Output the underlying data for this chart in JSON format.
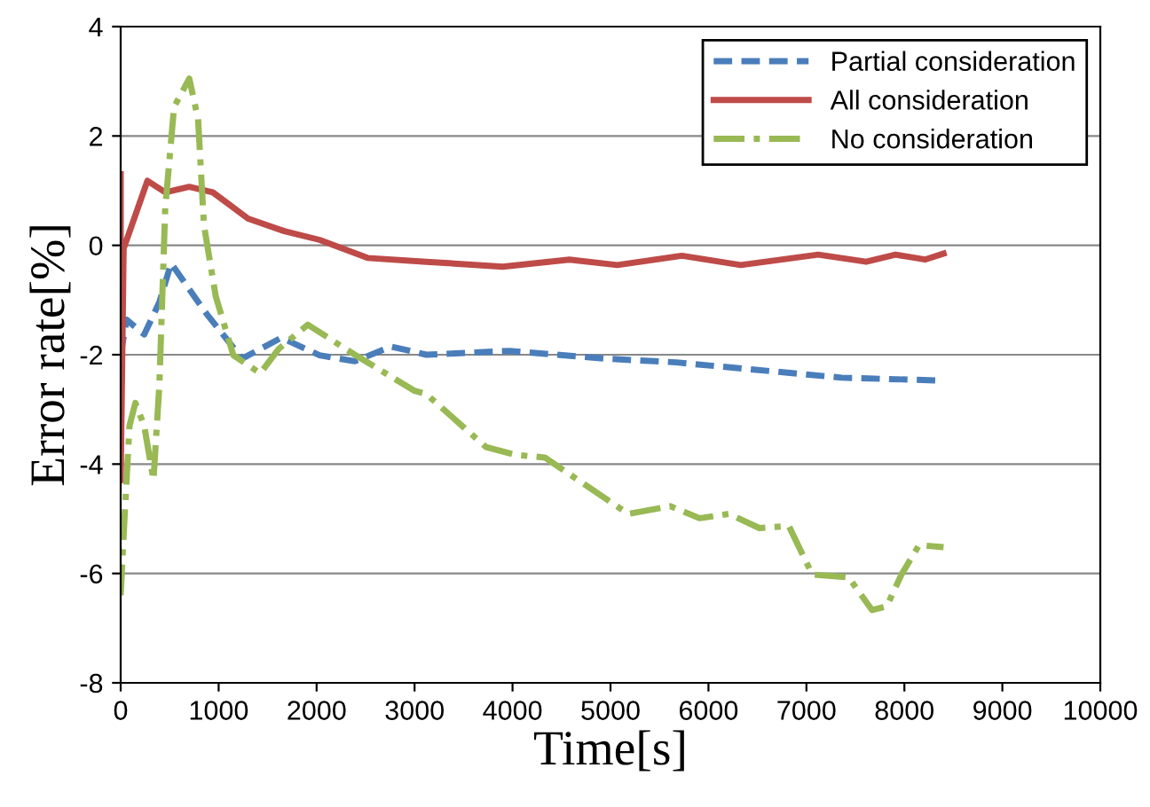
{
  "chart_data": {
    "type": "line",
    "xlabel": "Time[s]",
    "ylabel": "Error rate[%]",
    "xlim": [
      0,
      10000
    ],
    "xticks": [
      0,
      1000,
      2000,
      3000,
      4000,
      5000,
      6000,
      7000,
      8000,
      9000,
      10000
    ],
    "ylim": [
      -8,
      4
    ],
    "yticks": [
      -8,
      -6,
      -4,
      -2,
      0,
      2,
      4
    ],
    "grid": "y",
    "legend": "top right",
    "marker": "none",
    "series": [
      {
        "name": "Partial consideration",
        "color": "#4a7ebb",
        "line_style": "dashed",
        "x": [
          0,
          60,
          240,
          395,
          515,
          880,
          1240,
          1640,
          2030,
          2390,
          2760,
          3120,
          3970,
          4940,
          5670,
          6390,
          7360,
          8330
        ],
        "values": [
          -2.0,
          -1.36,
          -1.63,
          -1.04,
          -0.33,
          -1.26,
          -2.07,
          -1.69,
          -2.01,
          -2.12,
          -1.85,
          -2.0,
          -1.93,
          -2.07,
          -2.14,
          -2.26,
          -2.42,
          -2.47
        ]
      },
      {
        "name": "All consideration",
        "color": "#be4b48",
        "line_style": "solid",
        "x": [
          0,
          0,
          30,
          273,
          455,
          700,
          940,
          1300,
          1670,
          2030,
          2520,
          3120,
          3900,
          4580,
          5070,
          5730,
          6330,
          7120,
          7610,
          7910,
          8210,
          8400
        ],
        "values": [
          1.3,
          -4.3,
          -0.06,
          1.18,
          0.97,
          1.07,
          0.97,
          0.49,
          0.26,
          0.1,
          -0.23,
          -0.3,
          -0.39,
          -0.26,
          -0.36,
          -0.19,
          -0.36,
          -0.17,
          -0.3,
          -0.17,
          -0.26,
          -0.15
        ]
      },
      {
        "name": "No consideration",
        "color": "#98b954",
        "line_style": "dashdot",
        "x": [
          0,
          30,
          90,
          150,
          240,
          335,
          395,
          455,
          545,
          700,
          790,
          850,
          970,
          1150,
          1425,
          1610,
          1910,
          2390,
          3000,
          3120,
          3730,
          4030,
          4330,
          5180,
          5610,
          5910,
          6210,
          6520,
          6820,
          7060,
          7430,
          7670,
          7820,
          7970,
          8150,
          8400
        ],
        "values": [
          -6.4,
          -5.3,
          -3.3,
          -2.88,
          -3.3,
          -4.29,
          -2.55,
          0.69,
          2.53,
          3.05,
          2.31,
          0.37,
          -0.93,
          -2.01,
          -2.34,
          -1.9,
          -1.45,
          -2.0,
          -2.66,
          -2.72,
          -3.69,
          -3.83,
          -3.88,
          -4.91,
          -4.77,
          -4.99,
          -4.91,
          -5.17,
          -5.13,
          -6.02,
          -6.07,
          -6.67,
          -6.6,
          -6.02,
          -5.48,
          -5.52
        ]
      }
    ]
  }
}
